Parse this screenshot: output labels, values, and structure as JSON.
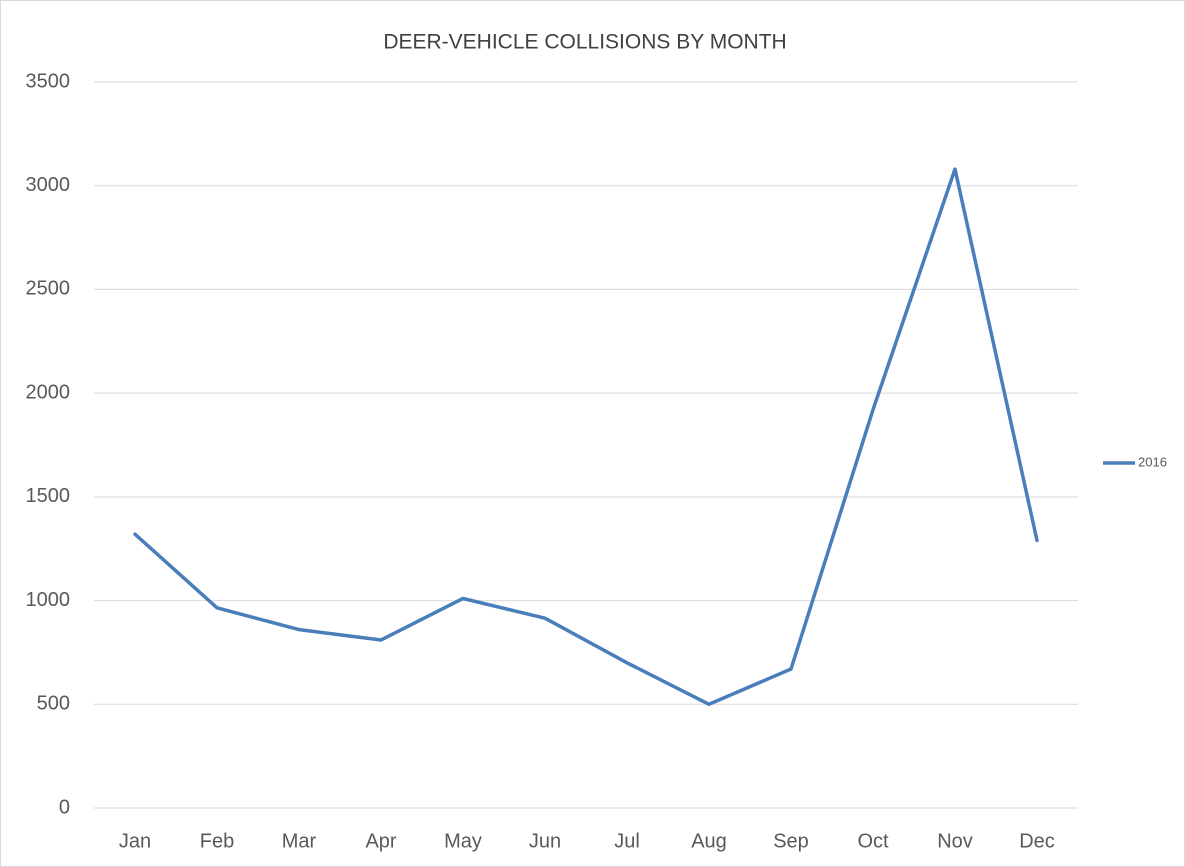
{
  "chart_data": {
    "type": "line",
    "title": "DEER-VEHICLE COLLISIONS BY MONTH",
    "categories": [
      "Jan",
      "Feb",
      "Mar",
      "Apr",
      "May",
      "Jun",
      "Jul",
      "Aug",
      "Sep",
      "Oct",
      "Nov",
      "Dec"
    ],
    "series": [
      {
        "name": "2016",
        "color": "#4a7ebb",
        "values": [
          1320,
          965,
          860,
          810,
          1010,
          915,
          700,
          500,
          670,
          1920,
          3080,
          1290
        ]
      }
    ],
    "ylim": [
      0,
      3500
    ],
    "yticks": [
      0,
      500,
      1000,
      1500,
      2000,
      2500,
      3000,
      3500
    ],
    "grid": true,
    "legend": "right"
  }
}
